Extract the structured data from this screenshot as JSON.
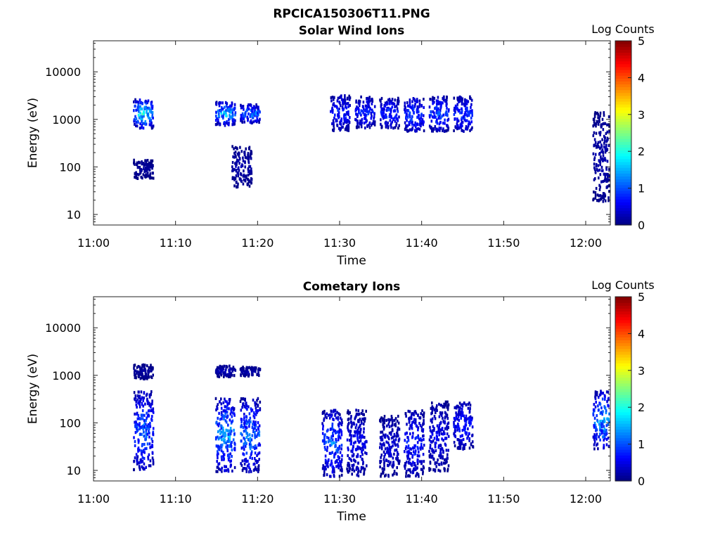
{
  "figure_title": "RPCICA150306T11.PNG",
  "colorbar": {
    "label": "Log Counts",
    "ticks": [
      "0",
      "1",
      "2",
      "3",
      "4",
      "5"
    ],
    "range": [
      0,
      5
    ],
    "colormap": "jet"
  },
  "chart_data": [
    {
      "type": "heatmap",
      "title": "Solar Wind Ions",
      "xlabel": "Time",
      "ylabel": "Energy (eV)",
      "yscale": "log",
      "ylim": [
        6,
        45000
      ],
      "xlim": [
        "11:00",
        "12:03"
      ],
      "xticks": [
        "11:00",
        "11:10",
        "11:20",
        "11:30",
        "11:40",
        "11:50",
        "12:00"
      ],
      "yticks": [
        "10",
        "100",
        "1000",
        "10000"
      ],
      "zlabel": "Log Counts",
      "zlim": [
        0,
        5
      ],
      "clusters": [
        {
          "t": "11:06",
          "energy": [
            700,
            2800
          ],
          "peak": 2.2
        },
        {
          "t": "11:06",
          "energy": [
            60,
            150
          ],
          "peak": 0.2
        },
        {
          "t": "11:16",
          "energy": [
            800,
            2500
          ],
          "peak": 2.0
        },
        {
          "t": "11:19",
          "energy": [
            900,
            2200
          ],
          "peak": 1.6
        },
        {
          "t": "11:18",
          "energy": [
            40,
            300
          ],
          "peak": 0.3
        },
        {
          "t": "11:30",
          "energy": [
            600,
            3500
          ],
          "peak": 1.0
        },
        {
          "t": "11:33",
          "energy": [
            700,
            3200
          ],
          "peak": 1.0
        },
        {
          "t": "11:36",
          "energy": [
            700,
            3000
          ],
          "peak": 1.1
        },
        {
          "t": "11:39",
          "energy": [
            600,
            3000
          ],
          "peak": 1.3
        },
        {
          "t": "11:42",
          "energy": [
            600,
            3200
          ],
          "peak": 1.3
        },
        {
          "t": "11:45",
          "energy": [
            600,
            3200
          ],
          "peak": 1.2
        },
        {
          "t": "12:02",
          "energy": [
            20,
            1500
          ],
          "peak": 0.3
        }
      ]
    },
    {
      "type": "heatmap",
      "title": "Cometary Ions",
      "xlabel": "Time",
      "ylabel": "Energy (eV)",
      "yscale": "log",
      "ylim": [
        6,
        45000
      ],
      "xlim": [
        "11:00",
        "12:03"
      ],
      "xticks": [
        "11:00",
        "11:10",
        "11:20",
        "11:30",
        "11:40",
        "11:50",
        "12:00"
      ],
      "yticks": [
        "10",
        "100",
        "1000",
        "10000"
      ],
      "zlabel": "Log Counts",
      "zlim": [
        0,
        5
      ],
      "clusters": [
        {
          "t": "11:06",
          "energy": [
            900,
            1800
          ],
          "peak": 0.2
        },
        {
          "t": "11:06",
          "energy": [
            10,
            500
          ],
          "peak": 1.4
        },
        {
          "t": "11:16",
          "energy": [
            1000,
            1700
          ],
          "peak": 0.4
        },
        {
          "t": "11:19",
          "energy": [
            1000,
            1600
          ],
          "peak": 0.3
        },
        {
          "t": "11:16",
          "energy": [
            10,
            350
          ],
          "peak": 1.8
        },
        {
          "t": "11:19",
          "energy": [
            10,
            350
          ],
          "peak": 1.6
        },
        {
          "t": "11:29",
          "energy": [
            8,
            200
          ],
          "peak": 1.4
        },
        {
          "t": "11:32",
          "energy": [
            8,
            200
          ],
          "peak": 0.8
        },
        {
          "t": "11:36",
          "energy": [
            8,
            150
          ],
          "peak": 0.6
        },
        {
          "t": "11:39",
          "energy": [
            8,
            200
          ],
          "peak": 1.0
        },
        {
          "t": "11:42",
          "energy": [
            10,
            300
          ],
          "peak": 0.7
        },
        {
          "t": "11:45",
          "energy": [
            30,
            300
          ],
          "peak": 1.0
        },
        {
          "t": "12:02",
          "energy": [
            30,
            500
          ],
          "peak": 1.8
        }
      ]
    }
  ]
}
